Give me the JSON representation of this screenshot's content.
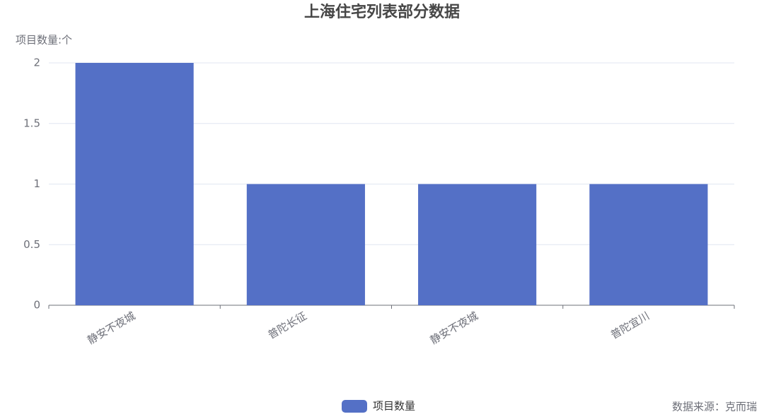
{
  "chart_data": {
    "type": "bar",
    "title": "上海住宅列表部分数据",
    "y_axis_label": "项目数量:个",
    "categories": [
      "静安不夜城",
      "普陀长征",
      "静安不夜城",
      "普陀宜川"
    ],
    "series": [
      {
        "name": "项目数量",
        "color": "#5470c6",
        "values": [
          2,
          1,
          1,
          1
        ]
      }
    ],
    "ylim": [
      0,
      2
    ],
    "yticks": [
      0,
      0.5,
      1,
      1.5,
      2
    ],
    "grid": true,
    "legend": "bottom",
    "source": "数据来源：克而瑞"
  }
}
